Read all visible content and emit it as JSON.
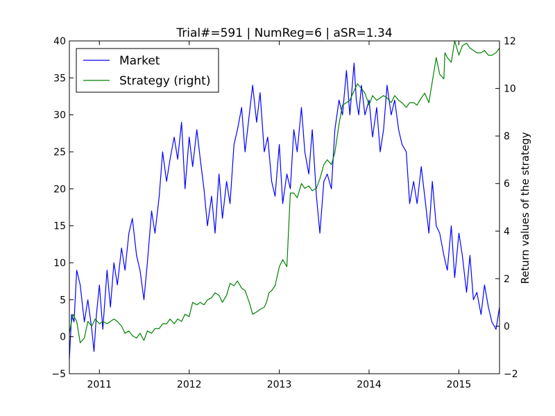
{
  "chart_data": {
    "type": "line",
    "title": "Trial#=591 | NumReg=6 | aSR=1.34",
    "xlabel": "",
    "ylabel_left": "",
    "ylabel_right": "Return values of the strategy",
    "x_range": [
      "2010-09-01",
      "2015-06-15"
    ],
    "x_ticks": [
      "2011",
      "2012",
      "2013",
      "2014",
      "2015"
    ],
    "y_left": {
      "lim": [
        -5,
        40
      ],
      "ticks": [
        "−5",
        "0",
        "5",
        "10",
        "15",
        "20",
        "25",
        "30",
        "35",
        "40"
      ]
    },
    "y_right": {
      "lim": [
        -2,
        12
      ],
      "ticks": [
        "−2",
        "0",
        "2",
        "4",
        "6",
        "8",
        "10",
        "12"
      ]
    },
    "grid": false,
    "legend_position": "top-left",
    "series": [
      {
        "name": "Market",
        "axis": "left",
        "color": "#0000ff",
        "x": [
          "2010-09-01",
          "2010-09-10",
          "2010-09-20",
          "2010-10-01",
          "2010-10-15",
          "2010-11-01",
          "2010-11-15",
          "2010-12-01",
          "2010-12-10",
          "2010-12-20",
          "2011-01-01",
          "2011-01-15",
          "2011-02-01",
          "2011-02-15",
          "2011-03-01",
          "2011-03-15",
          "2011-04-01",
          "2011-04-15",
          "2011-05-01",
          "2011-05-15",
          "2011-06-01",
          "2011-06-15",
          "2011-07-01",
          "2011-07-15",
          "2011-08-01",
          "2011-08-15",
          "2011-09-01",
          "2011-09-15",
          "2011-10-01",
          "2011-10-15",
          "2011-11-01",
          "2011-11-15",
          "2011-12-01",
          "2011-12-15",
          "2012-01-01",
          "2012-01-15",
          "2012-02-01",
          "2012-02-15",
          "2012-03-01",
          "2012-03-15",
          "2012-04-01",
          "2012-04-15",
          "2012-05-01",
          "2012-05-15",
          "2012-06-01",
          "2012-06-15",
          "2012-07-01",
          "2012-07-15",
          "2012-08-01",
          "2012-08-15",
          "2012-09-01",
          "2012-09-15",
          "2012-10-01",
          "2012-10-15",
          "2012-11-01",
          "2012-11-15",
          "2012-12-01",
          "2012-12-15",
          "2013-01-01",
          "2013-01-15",
          "2013-02-01",
          "2013-02-15",
          "2013-03-01",
          "2013-03-15",
          "2013-04-01",
          "2013-04-15",
          "2013-05-01",
          "2013-05-15",
          "2013-06-01",
          "2013-06-15",
          "2013-07-01",
          "2013-07-15",
          "2013-08-01",
          "2013-08-15",
          "2013-09-01",
          "2013-09-15",
          "2013-10-01",
          "2013-10-15",
          "2013-11-01",
          "2013-11-10",
          "2013-11-20",
          "2013-12-01",
          "2013-12-15",
          "2014-01-01",
          "2014-01-15",
          "2014-02-01",
          "2014-02-15",
          "2014-03-01",
          "2014-03-15",
          "2014-04-01",
          "2014-04-15",
          "2014-05-01",
          "2014-05-15",
          "2014-06-01",
          "2014-06-15",
          "2014-07-01",
          "2014-07-15",
          "2014-08-01",
          "2014-08-15",
          "2014-09-01",
          "2014-09-15",
          "2014-10-01",
          "2014-10-15",
          "2014-11-01",
          "2014-11-15",
          "2014-12-01",
          "2014-12-15",
          "2015-01-01",
          "2015-01-15",
          "2015-02-01",
          "2015-02-15",
          "2015-03-01",
          "2015-03-15",
          "2015-04-01",
          "2015-04-15",
          "2015-05-01",
          "2015-05-15",
          "2015-06-01",
          "2015-06-15"
        ],
        "values": [
          -3,
          3,
          2,
          9,
          7,
          2,
          5,
          1,
          -2,
          3,
          7,
          1,
          9,
          4,
          10,
          7,
          12,
          9,
          14,
          16,
          11,
          9,
          5,
          10,
          17,
          14,
          19,
          25,
          21,
          24,
          27,
          24,
          29,
          20,
          27,
          23,
          28,
          24,
          20,
          15,
          19,
          14,
          22,
          16,
          21,
          18,
          26,
          28,
          31,
          25,
          30,
          34,
          29,
          33,
          25,
          27,
          21,
          19,
          26,
          18,
          22,
          20,
          28,
          25,
          31,
          25,
          22,
          28,
          19,
          14,
          21,
          22,
          20,
          28,
          32,
          30,
          36,
          30,
          37,
          32,
          30,
          34,
          30,
          32,
          27,
          31,
          25,
          28,
          34,
          30,
          32,
          28,
          26,
          25,
          18,
          21,
          18,
          23,
          19,
          14,
          21,
          15,
          14,
          11,
          9,
          15,
          8,
          14,
          11,
          6,
          11,
          5,
          6,
          3,
          7,
          4,
          2,
          1,
          4
        ]
      },
      {
        "name": "Strategy (right)",
        "axis": "right",
        "color": "#008000",
        "x": [
          "2010-09-01",
          "2010-09-15",
          "2010-10-01",
          "2010-10-15",
          "2010-11-01",
          "2010-11-15",
          "2010-12-01",
          "2010-12-15",
          "2011-01-01",
          "2011-01-15",
          "2011-02-01",
          "2011-02-15",
          "2011-03-01",
          "2011-03-15",
          "2011-04-01",
          "2011-04-15",
          "2011-05-01",
          "2011-05-15",
          "2011-06-01",
          "2011-06-15",
          "2011-07-01",
          "2011-07-15",
          "2011-08-01",
          "2011-08-15",
          "2011-09-01",
          "2011-09-15",
          "2011-10-01",
          "2011-10-15",
          "2011-11-01",
          "2011-11-15",
          "2011-12-01",
          "2011-12-15",
          "2012-01-01",
          "2012-01-15",
          "2012-02-01",
          "2012-02-15",
          "2012-03-01",
          "2012-03-15",
          "2012-04-01",
          "2012-04-15",
          "2012-05-01",
          "2012-05-15",
          "2012-06-01",
          "2012-06-15",
          "2012-07-01",
          "2012-07-15",
          "2012-08-01",
          "2012-08-15",
          "2012-09-01",
          "2012-09-15",
          "2012-10-01",
          "2012-10-15",
          "2012-11-01",
          "2012-11-10",
          "2012-11-20",
          "2012-12-01",
          "2012-12-15",
          "2013-01-01",
          "2013-01-15",
          "2013-02-01",
          "2013-02-15",
          "2013-03-01",
          "2013-03-15",
          "2013-04-01",
          "2013-04-15",
          "2013-05-01",
          "2013-05-15",
          "2013-06-01",
          "2013-06-15",
          "2013-07-01",
          "2013-07-15",
          "2013-08-01",
          "2013-08-15",
          "2013-09-01",
          "2013-09-15",
          "2013-10-01",
          "2013-10-15",
          "2013-11-01",
          "2013-11-15",
          "2013-12-01",
          "2013-12-15",
          "2014-01-01",
          "2014-01-15",
          "2014-02-01",
          "2014-02-15",
          "2014-03-01",
          "2014-03-15",
          "2014-04-01",
          "2014-04-15",
          "2014-05-01",
          "2014-05-15",
          "2014-06-01",
          "2014-06-15",
          "2014-07-01",
          "2014-07-15",
          "2014-08-01",
          "2014-08-15",
          "2014-09-01",
          "2014-09-15",
          "2014-10-01",
          "2014-10-15",
          "2014-11-01",
          "2014-11-05",
          "2014-11-15",
          "2014-12-01",
          "2014-12-15",
          "2015-01-01",
          "2015-01-15",
          "2015-02-01",
          "2015-02-15",
          "2015-03-01",
          "2015-03-15",
          "2015-04-01",
          "2015-04-15",
          "2015-05-01",
          "2015-05-15",
          "2015-06-01",
          "2015-06-15"
        ],
        "values": [
          -0.3,
          0.5,
          0.2,
          -0.7,
          -0.5,
          0.2,
          0.0,
          0.3,
          0.1,
          0.2,
          0.1,
          0.2,
          0.3,
          0.2,
          0.0,
          -0.3,
          -0.2,
          -0.4,
          -0.5,
          -0.3,
          -0.6,
          -0.2,
          -0.3,
          -0.1,
          -0.1,
          0.1,
          0.1,
          0.3,
          0.1,
          0.3,
          0.2,
          0.5,
          0.4,
          1.0,
          0.9,
          1.0,
          0.9,
          1.1,
          1.2,
          1.4,
          1.3,
          1.0,
          1.3,
          1.8,
          1.7,
          1.9,
          1.6,
          1.5,
          1.0,
          0.5,
          0.6,
          0.7,
          0.8,
          1.0,
          1.4,
          1.5,
          1.7,
          2.5,
          2.8,
          2.5,
          5.6,
          5.6,
          5.4,
          6.0,
          5.8,
          5.9,
          5.7,
          5.8,
          6.2,
          6.8,
          7.0,
          6.8,
          7.3,
          8.5,
          9.3,
          9.4,
          9.5,
          9.9,
          10.2,
          10.0,
          9.8,
          9.3,
          9.7,
          9.5,
          9.6,
          9.7,
          9.6,
          9.4,
          9.7,
          9.5,
          9.4,
          9.2,
          9.4,
          9.4,
          9.3,
          9.6,
          9.8,
          9.4,
          10.3,
          11.3,
          10.6,
          10.4,
          11.5,
          11.3,
          11.1,
          12.0,
          11.4,
          11.8,
          11.9,
          11.7,
          11.6,
          11.5,
          11.5,
          11.6,
          11.4,
          11.4,
          11.5,
          11.7
        ]
      }
    ]
  }
}
